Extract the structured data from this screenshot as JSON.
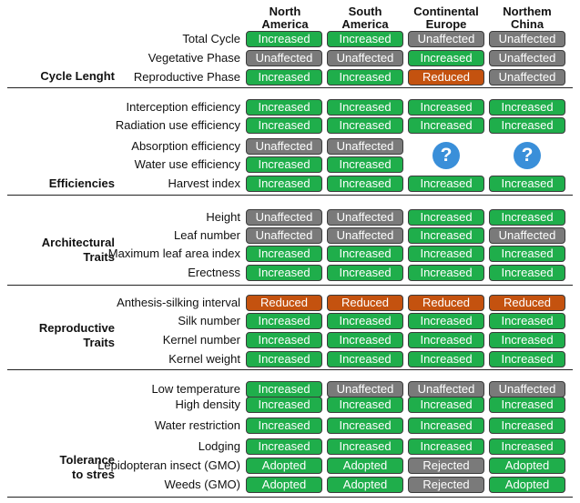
{
  "columns": [
    {
      "line1": "North",
      "line2": "America"
    },
    {
      "line1": "South",
      "line2": "America"
    },
    {
      "line1": "Continental",
      "line2": "Europe"
    },
    {
      "line1": "Northem",
      "line2": "China"
    }
  ],
  "colors": {
    "Increased": "#1fae4b",
    "Unaffected": "#7a7a7a",
    "Reduced": "#c4520f",
    "Adopted": "#1fae4b",
    "Rejected": "#7a7a7a",
    "unknown_icon": "#3a8fd9"
  },
  "sections": {
    "cycle": {
      "title": [
        "Cycle Lenght"
      ],
      "rows": [
        {
          "label": "Total Cycle",
          "values": [
            "Increased",
            "Increased",
            "Unaffected",
            "Unaffected"
          ]
        },
        {
          "label": "Vegetative Phase",
          "values": [
            "Unaffected",
            "Unaffected",
            "Increased",
            "Unaffected"
          ]
        },
        {
          "label": "Reproductive Phase",
          "values": [
            "Increased",
            "Increased",
            "Reduced",
            "Unaffected"
          ]
        }
      ]
    },
    "efficiencies": {
      "title": [
        "Efficiencies"
      ],
      "rows": [
        {
          "label": "Interception efficiency",
          "values": [
            "Increased",
            "Increased",
            "Increased",
            "Increased"
          ]
        },
        {
          "label": "Radiation use efficiency",
          "values": [
            "Increased",
            "Increased",
            "Increased",
            "Increased"
          ]
        },
        {
          "label": "Absorption efficiency",
          "values": [
            "Unaffected",
            "Unaffected",
            null,
            null
          ]
        },
        {
          "label": "Water use efficiency",
          "values": [
            "Increased",
            "Increased",
            null,
            null
          ]
        },
        {
          "label": "Harvest index",
          "values": [
            "Increased",
            "Increased",
            "Increased",
            "Increased"
          ]
        }
      ],
      "unknown_symbol": "?"
    },
    "architectural": {
      "title": [
        "Architectural",
        "Traits"
      ],
      "rows": [
        {
          "label": "Height",
          "values": [
            "Unaffected",
            "Unaffected",
            "Increased",
            "Increased"
          ]
        },
        {
          "label": "Leaf number",
          "values": [
            "Unaffected",
            "Unaffected",
            "Increased",
            "Unaffected"
          ]
        },
        {
          "label": "Maximum leaf area index",
          "values": [
            "Increased",
            "Increased",
            "Increased",
            "Increased"
          ]
        },
        {
          "label": "Erectness",
          "values": [
            "Increased",
            "Increased",
            "Increased",
            "Increased"
          ]
        }
      ]
    },
    "reproductive": {
      "title": [
        "Reproductive",
        "Traits"
      ],
      "rows": [
        {
          "label": "Anthesis-silking interval",
          "values": [
            "Reduced",
            "Reduced",
            "Reduced",
            "Reduced"
          ]
        },
        {
          "label": "Silk number",
          "values": [
            "Increased",
            "Increased",
            "Increased",
            "Increased"
          ]
        },
        {
          "label": "Kernel number",
          "values": [
            "Increased",
            "Increased",
            "Increased",
            "Increased"
          ]
        },
        {
          "label": "Kernel weight",
          "values": [
            "Increased",
            "Increased",
            "Increased",
            "Increased"
          ]
        }
      ]
    },
    "tolerance": {
      "title": [
        "Tolerance",
        "to stres"
      ],
      "rows": [
        {
          "label": "Low temperature",
          "values": [
            "Increased",
            "Unaffected",
            "Unaffected",
            "Unaffected"
          ]
        },
        {
          "label": "High density",
          "values": [
            "Increased",
            "Increased",
            "Increased",
            "Increased"
          ]
        },
        {
          "label": "Water restriction",
          "values": [
            "Increased",
            "Increased",
            "Increased",
            "Increased"
          ]
        },
        {
          "label": "Lodging",
          "values": [
            "Increased",
            "Increased",
            "Increased",
            "Increased"
          ]
        },
        {
          "label": "Lepidopteran insect (GMO)",
          "values": [
            "Adopted",
            "Adopted",
            "Rejected",
            "Adopted"
          ]
        },
        {
          "label": "Weeds (GMO)",
          "values": [
            "Adopted",
            "Adopted",
            "Rejected",
            "Adopted"
          ]
        }
      ]
    }
  }
}
